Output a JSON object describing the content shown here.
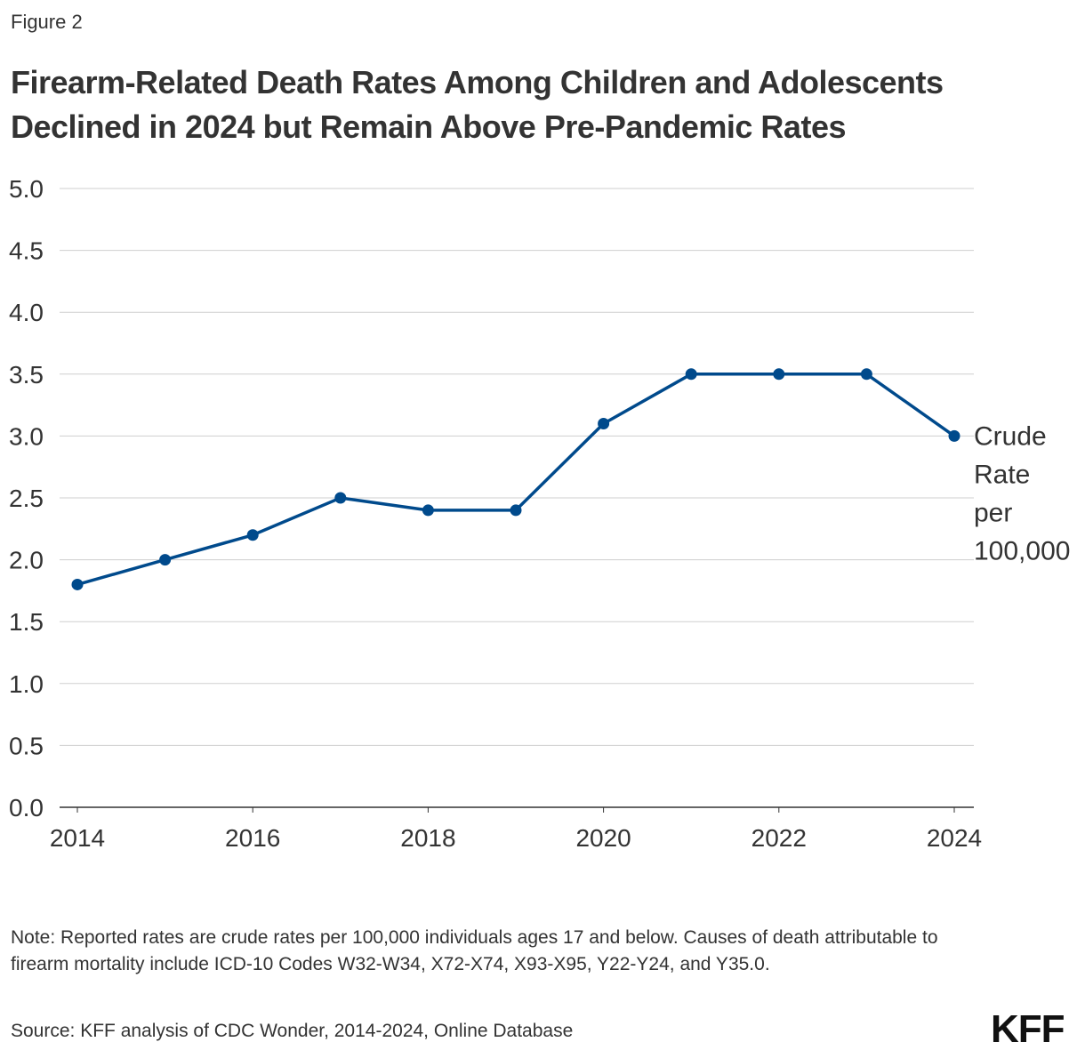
{
  "figure_label": "Figure 2",
  "title_line1": "Firearm-Related Death Rates Among Children and Adolescents",
  "title_line2": "Declined in 2024 but Remain Above Pre-Pandemic Rates",
  "note": "Note: Reported rates are crude rates per 100,000 individuals ages 17 and below. Causes of death attributable to firearm mortality include ICD-10 Codes W32-W34, X72-X74, X93-X95, Y22-Y24, and Y35.0.",
  "source": "Source: KFF analysis of CDC Wonder, 2014-2024, Online Database",
  "logo": "KFF",
  "chart_data": {
    "type": "line",
    "x": [
      2014,
      2015,
      2016,
      2017,
      2018,
      2019,
      2020,
      2021,
      2022,
      2023,
      2024
    ],
    "series": [
      {
        "name": "Crude Rate per 100,000",
        "values": [
          1.8,
          2.0,
          2.2,
          2.5,
          2.4,
          2.4,
          3.1,
          3.5,
          3.5,
          3.5,
          3.0
        ],
        "color": "#004a8c"
      }
    ],
    "series_label_lines": [
      "Crude",
      "Rate",
      "per",
      "100,000"
    ],
    "ylim": [
      0,
      5
    ],
    "yticks": [
      "0.0",
      "0.5",
      "1.0",
      "1.5",
      "2.0",
      "2.5",
      "3.0",
      "3.5",
      "4.0",
      "4.5",
      "5.0"
    ],
    "xticks": [
      "2014",
      "2016",
      "2018",
      "2020",
      "2022",
      "2024"
    ],
    "xlim": [
      2014,
      2024
    ],
    "grid": true,
    "legend": "direct label at line end"
  }
}
